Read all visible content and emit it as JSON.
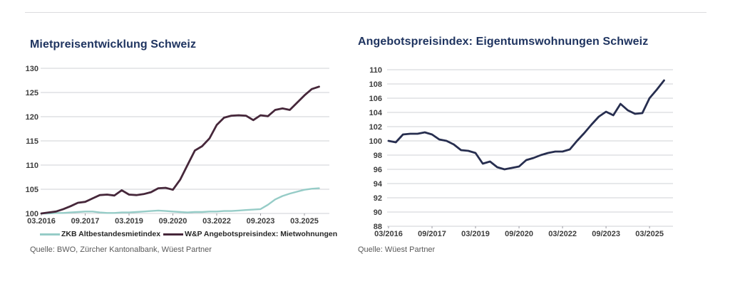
{
  "chart_data": [
    {
      "type": "line",
      "title": "Mietpreisentwicklung Schweiz",
      "source": "Quelle: BWO, Zürcher Kantonalbank, Wüest Partner",
      "x_tick_labels": [
        "03.2016",
        "09.2017",
        "03.2019",
        "09.2020",
        "03.2022",
        "09.2023",
        "03.2025"
      ],
      "x_tick_every": 6,
      "x_frequency": "quarterly",
      "ylim": [
        100,
        130
      ],
      "y_ticks": [
        100,
        105,
        110,
        115,
        120,
        125,
        130
      ],
      "grid": true,
      "legend_position": "bottom",
      "series": [
        {
          "name": "ZKB Altbestandesmietindex",
          "color": "#96ccc7",
          "values": [
            100.0,
            100.0,
            100.1,
            100.1,
            100.2,
            100.3,
            100.4,
            100.4,
            100.2,
            100.1,
            100.1,
            100.2,
            100.2,
            100.3,
            100.4,
            100.5,
            100.6,
            100.5,
            100.4,
            100.3,
            100.2,
            100.3,
            100.3,
            100.4,
            100.4,
            100.5,
            100.5,
            100.6,
            100.7,
            100.8,
            100.9,
            101.8,
            102.9,
            103.6,
            104.1,
            104.5,
            104.9,
            105.1,
            105.2
          ]
        },
        {
          "name": "W&P Angebotspreisindex: Mietwohnungen",
          "color": "#46273a",
          "values": [
            100.0,
            100.2,
            100.4,
            100.9,
            101.5,
            102.2,
            102.4,
            103.1,
            103.8,
            103.9,
            103.7,
            104.8,
            103.9,
            103.8,
            104.0,
            104.4,
            105.2,
            105.3,
            104.9,
            107.0,
            110.0,
            113.0,
            113.9,
            115.5,
            118.3,
            119.8,
            120.2,
            120.3,
            120.2,
            119.3,
            120.3,
            120.1,
            121.4,
            121.7,
            121.4,
            122.9,
            124.4,
            125.7,
            126.2
          ]
        }
      ]
    },
    {
      "type": "line",
      "title": "Angebotspreisindex: Eigentumswohnungen Schweiz",
      "source": "Quelle: Wüest Partner",
      "x_tick_labels": [
        "03/2016",
        "09/2017",
        "03/2019",
        "09/2020",
        "03/2022",
        "09/2023",
        "03/2025"
      ],
      "x_tick_every": 6,
      "x_frequency": "quarterly",
      "ylim": [
        88,
        110
      ],
      "y_ticks": [
        88,
        90,
        92,
        94,
        96,
        98,
        100,
        102,
        104,
        106,
        108,
        110
      ],
      "grid": true,
      "legend_position": "none",
      "series": [
        {
          "color": "#272e4f",
          "values": [
            100.0,
            99.8,
            100.9,
            101.0,
            101.0,
            101.2,
            100.9,
            100.2,
            100.0,
            99.5,
            98.7,
            98.6,
            98.3,
            96.8,
            97.1,
            96.3,
            96.0,
            96.2,
            96.4,
            97.3,
            97.6,
            98.0,
            98.3,
            98.5,
            98.5,
            98.8,
            100.0,
            101.1,
            102.3,
            103.4,
            104.1,
            103.6,
            105.2,
            104.3,
            103.8,
            103.9,
            106.0,
            107.2,
            108.5
          ]
        }
      ]
    }
  ]
}
